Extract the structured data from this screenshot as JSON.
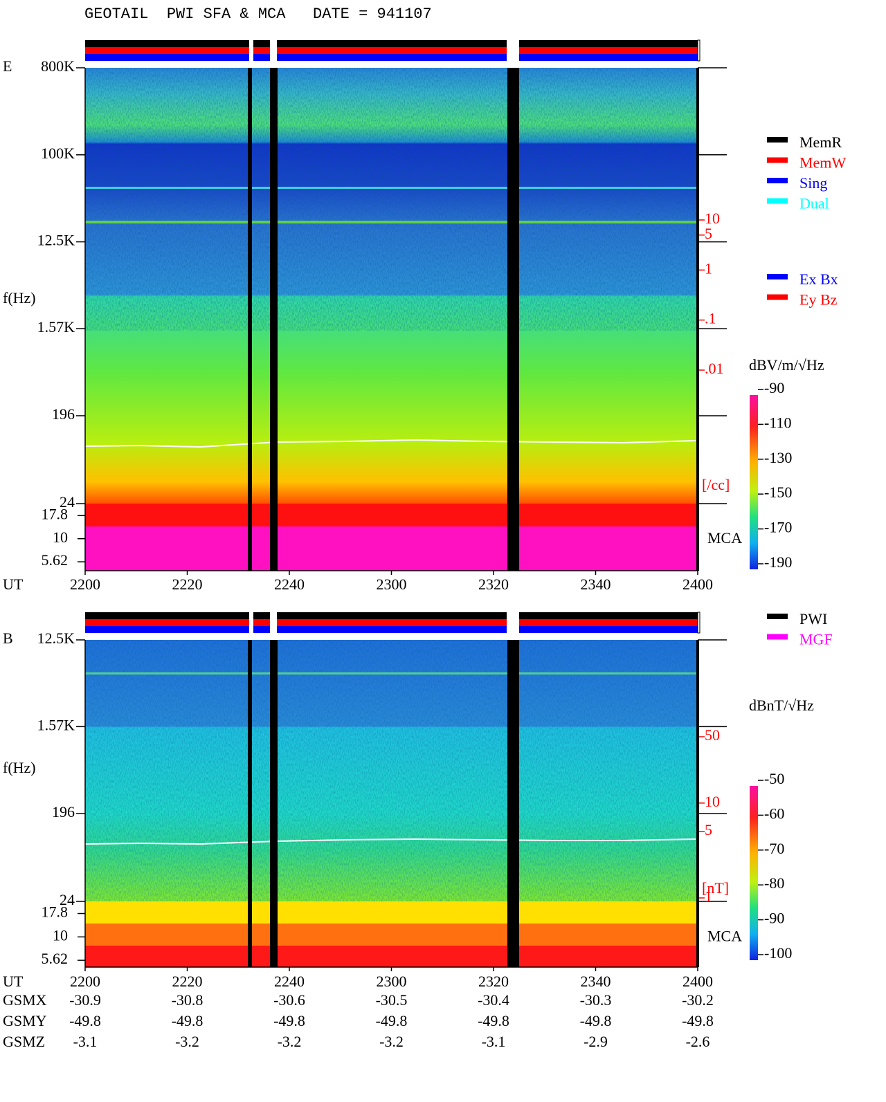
{
  "title": "GEOTAIL  PWI SFA & MCA   DATE = 941107",
  "chart_data": [
    {
      "type": "spectrogram",
      "panel": "E",
      "ylabel": "f(Hz)",
      "xlabel": "UT",
      "log_y": true,
      "ylim": [
        24,
        800000
      ],
      "yticks": [
        {
          "value": 800000,
          "label": "800K"
        },
        {
          "value": 100000,
          "label": "100K"
        },
        {
          "value": 12500,
          "label": "12.5K"
        },
        {
          "value": 1570,
          "label": "1.57K"
        },
        196,
        24
      ],
      "mca_ylim": [
        4.5,
        24
      ],
      "mca_yticks": [
        17.8,
        10,
        5.62
      ],
      "mca_label": "MCA",
      "x_labels": [
        "2200",
        "2220",
        "2240",
        "2300",
        "2320",
        "2340",
        "2400"
      ],
      "y2_label": "[/cc]",
      "y2lim": [
        0.01,
        10
      ],
      "y2ticks": [
        10,
        5,
        1,
        {
          "value": 0.1,
          "label": ".1"
        },
        {
          "value": 0.01,
          "label": ".01"
        }
      ],
      "colorbar": {
        "label": "dBV/m/√Hz",
        "lim": [
          -190,
          -90
        ],
        "ticks": [
          -90,
          -110,
          -130,
          -150,
          -170,
          -190
        ]
      },
      "legend": [
        {
          "name": "MemR",
          "color": "#000000"
        },
        {
          "name": "MemW",
          "color": "#ff0000"
        },
        {
          "name": "Sing",
          "color": "#0000ff"
        },
        {
          "name": "Dual",
          "color": "#00ffff"
        }
      ],
      "legend2": [
        {
          "name": "Ex Bx",
          "color": "#0000ff"
        },
        {
          "name": "Ey Bz",
          "color": "#ff0000"
        }
      ]
    },
    {
      "type": "spectrogram",
      "panel": "B",
      "ylabel": "f(Hz)",
      "xlabel": "UT",
      "log_y": true,
      "ylim": [
        24,
        12500
      ],
      "yticks": [
        {
          "value": 12500,
          "label": "12.5K"
        },
        {
          "value": 1570,
          "label": "1.57K"
        },
        196,
        24
      ],
      "mca_ylim": [
        4.75,
        24
      ],
      "mca_yticks": [
        17.8,
        10,
        5.62
      ],
      "mca_label": "MCA",
      "x_labels": [
        "2200",
        "2220",
        "2240",
        "2300",
        "2320",
        "2340",
        "2400"
      ],
      "y2_label": "[nT]",
      "y2lim": [
        1,
        50
      ],
      "y2ticks": [
        50,
        10,
        5,
        1
      ],
      "colorbar": {
        "label": "dBnT/√Hz",
        "lim": [
          -100,
          -50
        ],
        "ticks": [
          -50,
          -60,
          -70,
          -80,
          -90,
          -100
        ]
      },
      "legend": [
        {
          "name": "PWI",
          "color": "#000000"
        },
        {
          "name": "MGF",
          "color": "#ff00ff"
        }
      ]
    }
  ],
  "ephemeris": [
    {
      "label": "GSMX",
      "values": [
        -30.9,
        -30.8,
        -30.6,
        -30.5,
        -30.4,
        -30.3,
        -30.2
      ]
    },
    {
      "label": "GSMY",
      "values": [
        -49.8,
        -49.8,
        -49.8,
        -49.8,
        -49.8,
        -49.8,
        -49.8
      ]
    },
    {
      "label": "GSMZ",
      "values": [
        -3.1,
        -3.2,
        -3.2,
        -3.2,
        -3.1,
        -2.9,
        -2.6
      ]
    }
  ]
}
